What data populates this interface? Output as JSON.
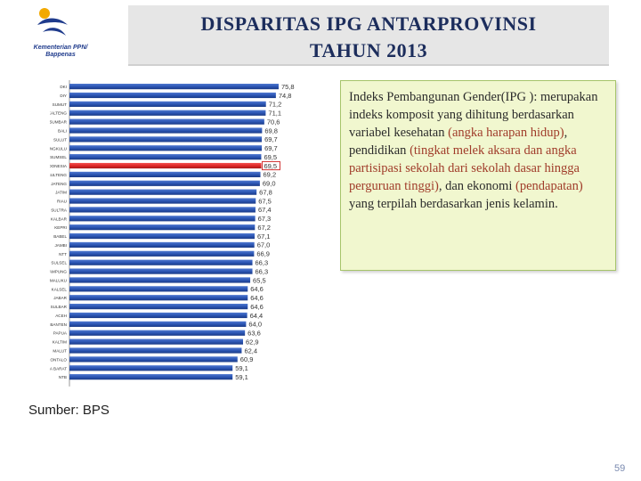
{
  "logo": {
    "line1": "Kementerian PPN/",
    "line2": "Bappenas",
    "colors": {
      "blue": "#1f3b8c",
      "gold": "#f2a900"
    }
  },
  "title": {
    "line1": "DISPARITAS IPG ANTARPROVINSI",
    "line2": "TAHUN 2013"
  },
  "info": {
    "parts": [
      {
        "text": "Indeks Pembangunan Gender(IPG ): merupakan indeks komposit yang dihitung berdasarkan variabel kesehatan ",
        "hl": false
      },
      {
        "text": "(angka harapan hidup)",
        "hl": true
      },
      {
        "text": ", pendidikan ",
        "hl": false
      },
      {
        "text": "(tingkat melek aksara dan angka partisipasi sekolah dari sekolah dasar hingga perguruan tinggi)",
        "hl": true
      },
      {
        "text": ", dan ekonomi ",
        "hl": false
      },
      {
        "text": "(pendapatan)",
        "hl": true
      },
      {
        "text": " yang terpilah berdasarkan jenis kelamin.",
        "hl": false
      }
    ]
  },
  "source": "Sumber: BPS",
  "page_number": "59",
  "chart_data": {
    "type": "bar",
    "orientation": "horizontal",
    "categories": [
      "DKI",
      "DIY",
      "SUMUT",
      "KALTENG",
      "SUMBAR",
      "BALI",
      "SULUT",
      "BENGKULU",
      "SUMSEL",
      "INDONESIA",
      "SULTENG",
      "JATENG",
      "JATIM",
      "RIAU",
      "SULTRA",
      "KALBAR",
      "KEPRI",
      "BABEL",
      "JAMBI",
      "NTT",
      "SULSEL",
      "LAMPUNG",
      "MALUKU",
      "KALSEL",
      "JABAR",
      "SULBAR",
      "ACEH",
      "BANTEN",
      "PAPUA",
      "KALTIM",
      "MALUT",
      "GORONTALO",
      "PAPUA BARAT",
      "NTB"
    ],
    "values": [
      75.8,
      74.8,
      71.2,
      71.1,
      70.6,
      69.8,
      69.7,
      69.7,
      69.5,
      69.5,
      69.2,
      69.0,
      67.8,
      67.5,
      67.4,
      67.3,
      67.2,
      67.1,
      67.0,
      66.9,
      66.3,
      66.3,
      65.5,
      64.6,
      64.6,
      64.6,
      64.4,
      64.0,
      63.6,
      62.9,
      62.4,
      60.9,
      59.1,
      59.1
    ],
    "labels": [
      "75,8",
      "74,8",
      "71,2",
      "71,1",
      "70,6",
      "69,8",
      "69,7",
      "69,7",
      "69,5",
      "69,5",
      "69,2",
      "69,0",
      "67,8",
      "67,5",
      "67,4",
      "67,3",
      "67,2",
      "67,1",
      "67,0",
      "66,9",
      "66,3",
      "66,3",
      "65,5",
      "64,6",
      "64,6",
      "64,6",
      "64,4",
      "64,0",
      "63,6",
      "62,9",
      "62,4",
      "60,9",
      "59,1",
      "59,1"
    ],
    "highlight": "INDONESIA",
    "xlim": [
      0,
      80
    ],
    "grid": false,
    "colors": {
      "bar": "#2c56b4",
      "bar_dark": "#1a3a86",
      "highlight": "#e02828",
      "highlight_border": "#d03030"
    }
  }
}
